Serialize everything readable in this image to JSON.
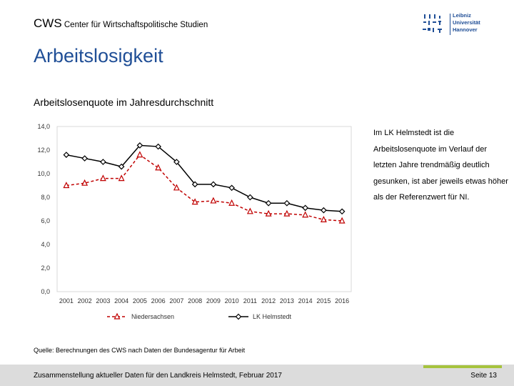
{
  "header": {
    "brand_short": "CWS",
    "brand_long": "Center für Wirtschaftspolitische Studien",
    "logo_text": [
      "Leibniz",
      "Universität",
      "Hannover"
    ]
  },
  "title": "Arbeitslosigkeit",
  "subtitle": "Arbeitslosenquote im Jahresdurchschnitt",
  "side_text": "Im LK Helmstedt ist die Arbeitslosenquote im Verlauf der letzten Jahre trendmäßig deutlich gesunken, ist aber jeweils etwas höher als der Referenzwert für NI.",
  "source": "Quelle: Berechnungen des CWS nach Daten der Bundesagentur für Arbeit",
  "footer": {
    "left": "Zusammenstellung aktueller Daten für den Landkreis Helmstedt, Februar 2017",
    "right": "Seite 13"
  },
  "colors": {
    "accent_blue": "#1f4e96",
    "niedersachsen": "#c00000",
    "helmstedt": "#000000",
    "accent_green": "#a6c33d"
  },
  "chart_data": {
    "type": "line",
    "title": "",
    "xlabel": "",
    "ylabel": "",
    "categories": [
      "2001",
      "2002",
      "2003",
      "2004",
      "2005",
      "2006",
      "2007",
      "2008",
      "2009",
      "2010",
      "2011",
      "2012",
      "2013",
      "2014",
      "2015",
      "2016"
    ],
    "ylim": [
      0,
      14
    ],
    "yticks": [
      "0,0",
      "2,0",
      "4,0",
      "6,0",
      "8,0",
      "10,0",
      "12,0",
      "14,0"
    ],
    "legend_position": "bottom",
    "series": [
      {
        "name": "Niedersachsen",
        "style": "dashed",
        "marker": "triangle",
        "values": [
          9.0,
          9.2,
          9.6,
          9.6,
          11.6,
          10.5,
          8.8,
          7.6,
          7.7,
          7.5,
          6.8,
          6.6,
          6.6,
          6.5,
          6.1,
          6.0
        ]
      },
      {
        "name": "LK Helmstedt",
        "style": "solid",
        "marker": "diamond",
        "values": [
          11.6,
          11.3,
          11.0,
          10.6,
          12.4,
          12.3,
          11.0,
          9.1,
          9.1,
          8.8,
          8.0,
          7.5,
          7.5,
          7.1,
          6.9,
          6.8
        ]
      }
    ]
  }
}
